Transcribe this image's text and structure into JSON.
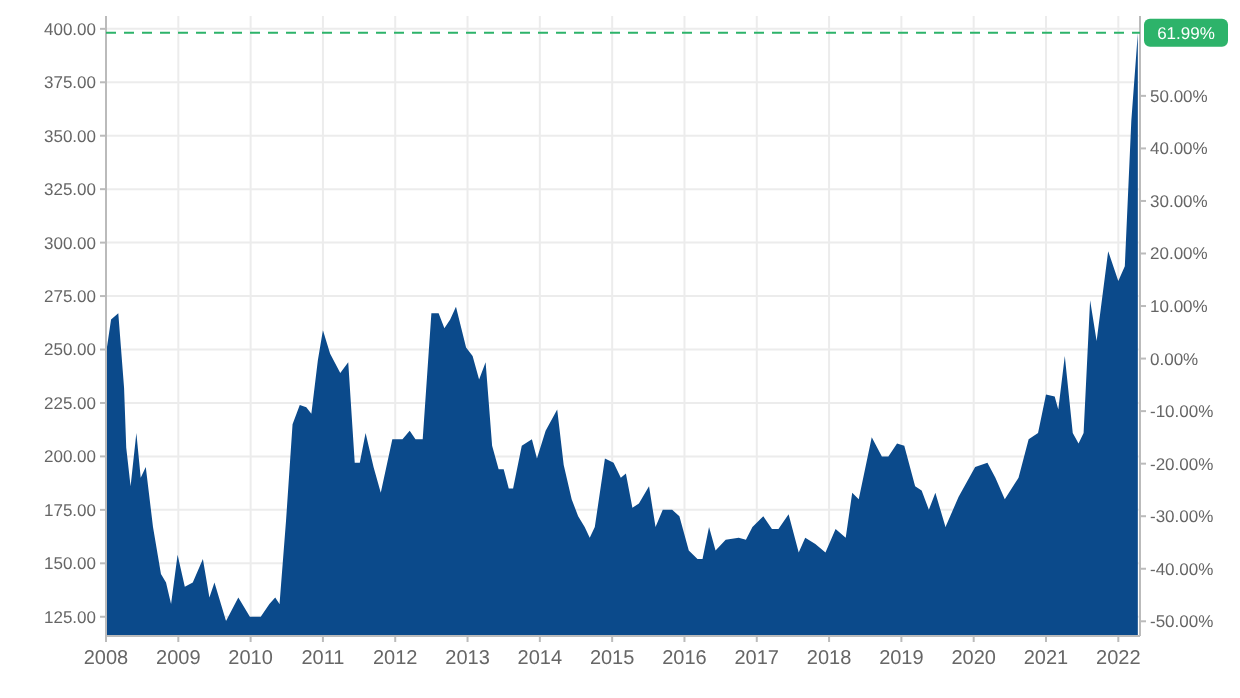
{
  "chart_data": {
    "type": "area",
    "grid": true,
    "xlim": [
      2008,
      2022.3
    ],
    "xticks": [
      2008,
      2009,
      2010,
      2011,
      2012,
      2013,
      2014,
      2015,
      2016,
      2017,
      2018,
      2019,
      2020,
      2021,
      2022
    ],
    "ylim": [
      116,
      406
    ],
    "yticks": [
      {
        "value": 125,
        "label": "125.00"
      },
      {
        "value": 150,
        "label": "150.00"
      },
      {
        "value": 175,
        "label": "175.00"
      },
      {
        "value": 200,
        "label": "200.00"
      },
      {
        "value": 225,
        "label": "225.00"
      },
      {
        "value": 250,
        "label": "250.00"
      },
      {
        "value": 275,
        "label": "275.00"
      },
      {
        "value": 300,
        "label": "300.00"
      },
      {
        "value": 325,
        "label": "325.00"
      },
      {
        "value": 350,
        "label": "350.00"
      },
      {
        "value": 375,
        "label": "375.00"
      },
      {
        "value": 400,
        "label": "400.00"
      }
    ],
    "y2lim": [
      -52.8,
      65.2
    ],
    "y2ticks": [
      {
        "value": -50,
        "label": "-50.00%"
      },
      {
        "value": -40,
        "label": "-40.00%"
      },
      {
        "value": -30,
        "label": "-30.00%"
      },
      {
        "value": -20,
        "label": "-20.00%"
      },
      {
        "value": -10,
        "label": "-10.00%"
      },
      {
        "value": 0,
        "label": "0.00%"
      },
      {
        "value": 10,
        "label": "10.00%"
      },
      {
        "value": 20,
        "label": "20.00%"
      },
      {
        "value": 30,
        "label": "30.00%"
      },
      {
        "value": 40,
        "label": "40.00%"
      },
      {
        "value": 50,
        "label": "50.00%"
      }
    ],
    "ref_lines": [
      {
        "axis": "y2",
        "value": 61.99,
        "label": "61.99%",
        "color": "#2db36a",
        "line_style": "dashed"
      }
    ],
    "series": [
      {
        "color": "#0b4a8b",
        "x": [
          2008.0,
          2008.07,
          2008.17,
          2008.25,
          2008.28,
          2008.34,
          2008.42,
          2008.48,
          2008.55,
          2008.65,
          2008.76,
          2008.83,
          2008.9,
          2008.99,
          2009.09,
          2009.2,
          2009.34,
          2009.43,
          2009.5,
          2009.66,
          2009.83,
          2009.99,
          2010.14,
          2010.26,
          2010.34,
          2010.4,
          2010.49,
          2010.58,
          2010.68,
          2010.77,
          2010.84,
          2010.93,
          2011.0,
          2011.1,
          2011.24,
          2011.35,
          2011.44,
          2011.51,
          2011.59,
          2011.7,
          2011.8,
          2011.96,
          2012.1,
          2012.2,
          2012.28,
          2012.38,
          2012.5,
          2012.6,
          2012.68,
          2012.76,
          2012.84,
          2012.98,
          2013.07,
          2013.16,
          2013.25,
          2013.34,
          2013.43,
          2013.5,
          2013.57,
          2013.63,
          2013.75,
          2013.89,
          2013.96,
          2014.08,
          2014.24,
          2014.33,
          2014.44,
          2014.53,
          2014.62,
          2014.69,
          2014.76,
          2014.9,
          2015.02,
          2015.12,
          2015.19,
          2015.28,
          2015.37,
          2015.51,
          2015.6,
          2015.7,
          2015.83,
          2015.93,
          2016.06,
          2016.18,
          2016.25,
          2016.34,
          2016.43,
          2016.57,
          2016.75,
          2016.85,
          2016.94,
          2017.09,
          2017.21,
          2017.3,
          2017.44,
          2017.58,
          2017.67,
          2017.81,
          2017.95,
          2018.09,
          2018.23,
          2018.32,
          2018.41,
          2018.59,
          2018.73,
          2018.82,
          2018.94,
          2019.04,
          2019.19,
          2019.28,
          2019.38,
          2019.47,
          2019.61,
          2019.79,
          2020.02,
          2020.19,
          2020.3,
          2020.43,
          2020.62,
          2020.76,
          2020.89,
          2021.0,
          2021.12,
          2021.17,
          2021.26,
          2021.37,
          2021.45,
          2021.52,
          2021.61,
          2021.7,
          2021.86,
          2022.0,
          2022.09,
          2022.18,
          2022.27
        ],
        "values": [
          248,
          264,
          267,
          232,
          204,
          186,
          211,
          190,
          195,
          167,
          145,
          141,
          131,
          154,
          139,
          141,
          152,
          134,
          141,
          123,
          134,
          125,
          125,
          131,
          134,
          131,
          170,
          215,
          224,
          223,
          220,
          245,
          259,
          248,
          239,
          244,
          197,
          197,
          211,
          195,
          183,
          208,
          208,
          212,
          208,
          208,
          267,
          267,
          260,
          264,
          270,
          251,
          247,
          236,
          244,
          205,
          194,
          194,
          185,
          185,
          205,
          208,
          199,
          212,
          222,
          196,
          180,
          172,
          167,
          162,
          167,
          199,
          197,
          190,
          192,
          176,
          178,
          186,
          167,
          175,
          175,
          172,
          156,
          152,
          152,
          167,
          156,
          161,
          162,
          161,
          167,
          172,
          166,
          166,
          173,
          155,
          162,
          159,
          155,
          166,
          162,
          183,
          180,
          209,
          200,
          200,
          206,
          205,
          186,
          184,
          175,
          183,
          167,
          181,
          195,
          197,
          190,
          180,
          190,
          208,
          211,
          229,
          228,
          222,
          247,
          211,
          206,
          211,
          273,
          254,
          296,
          282,
          289,
          357,
          398
        ]
      }
    ]
  }
}
